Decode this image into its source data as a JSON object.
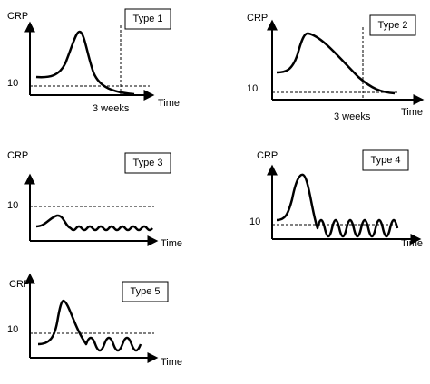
{
  "panels": [
    {
      "title": "Type 1",
      "y_label": "CRP",
      "tick": "10",
      "x_label": "Time",
      "annotation": "3 weeks"
    },
    {
      "title": "Type 2",
      "y_label": "CRP",
      "tick": "10",
      "x_label": "Time",
      "annotation": "3 weeks"
    },
    {
      "title": "Type 3",
      "y_label": "CRP",
      "tick": "10",
      "x_label": "Time"
    },
    {
      "title": "Type 4",
      "y_label": "CRP",
      "tick": "10",
      "x_label": "Time"
    },
    {
      "title": "Type 5",
      "y_label": "CRP",
      "tick": "10",
      "x_label": "Time"
    }
  ]
}
